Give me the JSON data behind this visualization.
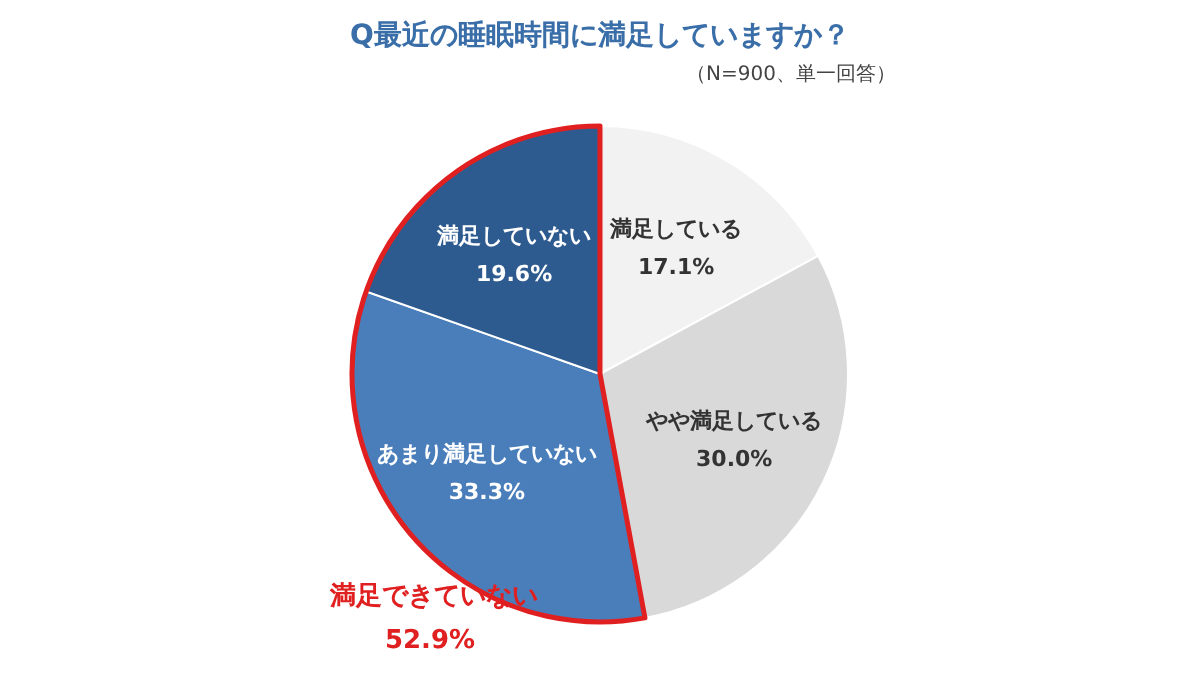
{
  "chart_data": {
    "type": "pie",
    "title": "Q最近の睡眠時間に満足していますか？",
    "subtitle": "（N=900、単一回答）",
    "categories": [
      "満足している",
      "やや満足している",
      "あまり満足していない",
      "満足していない"
    ],
    "values": [
      17.1,
      30.0,
      33.3,
      19.6
    ],
    "value_labels": [
      "17.1%",
      "30.0%",
      "33.3%",
      "19.6%"
    ],
    "colors": [
      "#f2f2f2",
      "#d9d9d9",
      "#4a7ebb",
      "#2e5b8f"
    ],
    "annotations": [
      "満足できていない",
      "52.9%"
    ]
  }
}
